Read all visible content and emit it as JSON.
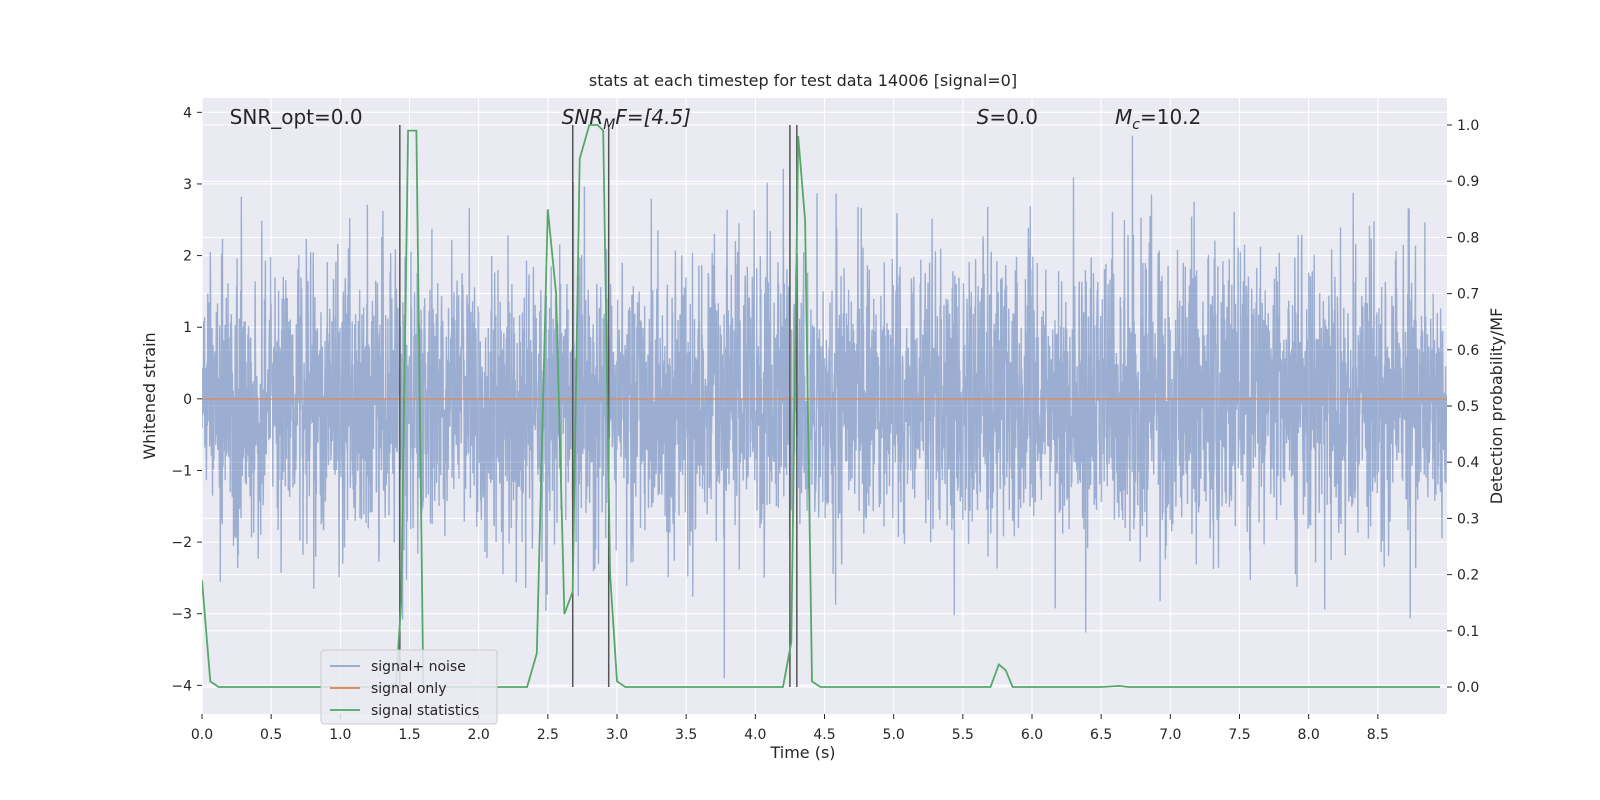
{
  "chart_data": {
    "type": "line",
    "title": "stats at each timestep for test data 14006 [signal=0]",
    "xlabel": "Time (s)",
    "ylabel": "Whitened strain",
    "ylabel_right": "Detection probability/MF",
    "xlim": [
      0,
      9.0
    ],
    "ylim": [
      -4.4,
      4.2
    ],
    "ylim_right": [
      -0.048,
      1.048
    ],
    "x_ticks": [
      "0.0",
      "0.5",
      "1.0",
      "1.5",
      "2.0",
      "2.5",
      "3.0",
      "3.5",
      "4.0",
      "4.5",
      "5.0",
      "5.5",
      "6.0",
      "6.5",
      "7.0",
      "7.5",
      "8.0",
      "8.5"
    ],
    "y_ticks": [
      "4",
      "3",
      "2",
      "1",
      "0",
      "−1",
      "−2",
      "−3",
      "−4"
    ],
    "y_ticks_right": [
      "1.0",
      "0.9",
      "0.8",
      "0.7",
      "0.6",
      "0.5",
      "0.4",
      "0.3",
      "0.2",
      "0.1",
      "0.0"
    ],
    "grid": true,
    "legend_placement": "lower-left",
    "annotations": [
      {
        "prefix": "SNR_opt=0.0",
        "italic": "",
        "sub": "",
        "suffix": "",
        "x": 0.2
      },
      {
        "prefix": "",
        "italic": "SNR",
        "sub": "M",
        "suffix": "F=[4.5]",
        "x": 2.6
      },
      {
        "prefix": "",
        "italic": "S",
        "sub": "",
        "suffix": "=0.0",
        "x": 5.6
      },
      {
        "prefix": "",
        "italic": "M",
        "sub": "c",
        "suffix": "=10.2",
        "x": 6.6
      }
    ],
    "series": [
      {
        "name": "signal+ noise",
        "color": "#4c72b0",
        "style": "dense whitened noise, amplitude about ±1.5 with peaks near ±3.8",
        "sample_rate_hz": 500,
        "seed": 14006
      },
      {
        "name": "signal only",
        "color": "#dd8452",
        "x": [
          0,
          9.0
        ],
        "y": [
          0,
          0
        ]
      },
      {
        "name": "signal statistics",
        "color": "#55a868",
        "axis": "right",
        "x": [
          0.0,
          0.06,
          0.12,
          1.4,
          1.44,
          1.49,
          1.55,
          1.6,
          1.65,
          2.0,
          2.35,
          2.42,
          2.5,
          2.56,
          2.62,
          2.68,
          2.73,
          2.8,
          2.86,
          2.9,
          2.95,
          3.0,
          3.06,
          3.12,
          3.5,
          4.0,
          4.2,
          4.26,
          4.31,
          4.36,
          4.41,
          4.47,
          4.6,
          5.0,
          5.7,
          5.76,
          5.81,
          5.86,
          5.93,
          6.5,
          6.63,
          6.7,
          8.95
        ],
        "y": [
          0.19,
          0.01,
          0.0,
          0.0,
          0.15,
          0.99,
          0.99,
          0.0,
          0.0,
          0.0,
          0.0,
          0.06,
          0.85,
          0.7,
          0.13,
          0.17,
          0.94,
          1.0,
          1.0,
          0.99,
          0.2,
          0.01,
          0.0,
          0.0,
          0.0,
          0.0,
          0.0,
          0.08,
          0.98,
          0.83,
          0.01,
          0.0,
          0.0,
          0.0,
          0.0,
          0.04,
          0.03,
          0.0,
          0.0,
          0.0,
          0.002,
          0.0,
          0.0
        ]
      }
    ],
    "vlines": [
      {
        "x": 1.43,
        "color": "#555555"
      },
      {
        "x": 2.68,
        "color": "#555555"
      },
      {
        "x": 2.94,
        "color": "#555555"
      },
      {
        "x": 4.25,
        "color": "#555555"
      },
      {
        "x": 4.3,
        "color": "#555555"
      }
    ],
    "colors": {
      "plot_background": "#eaeaf2",
      "grid": "#ffffff",
      "text": "#262626",
      "legend_background": "#eaeaf2",
      "legend_border": "#cccccc"
    }
  }
}
